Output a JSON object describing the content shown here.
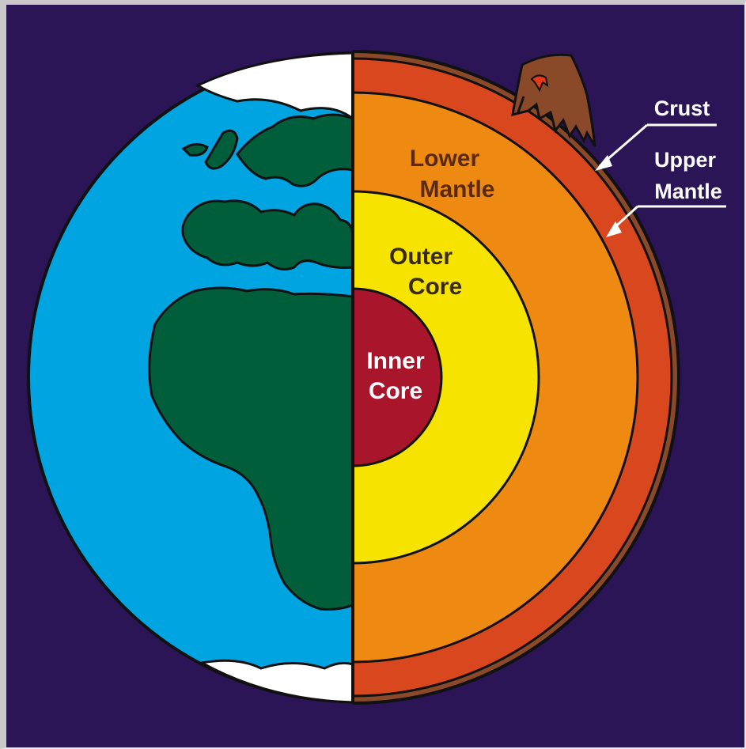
{
  "labels": {
    "crust": "Crust",
    "upper_mantle_line1": "Upper",
    "upper_mantle_line2": "Mantle",
    "lower_mantle_line1": "Lower",
    "lower_mantle_line2": "Mantle",
    "outer_core_line1": "Outer",
    "outer_core_line2": "Core",
    "inner_core_line1": "Inner",
    "inner_core_line2": "Core"
  },
  "colors": {
    "background": "#2b1557",
    "ocean": "#00a4e0",
    "land": "#005f3a",
    "ice": "#ffffff",
    "crust": "#8a4a2a",
    "upper_mantle": "#d9471f",
    "lower_mantle": "#ee8a12",
    "outer_core": "#f6e400",
    "inner_core": "#a9152a"
  }
}
